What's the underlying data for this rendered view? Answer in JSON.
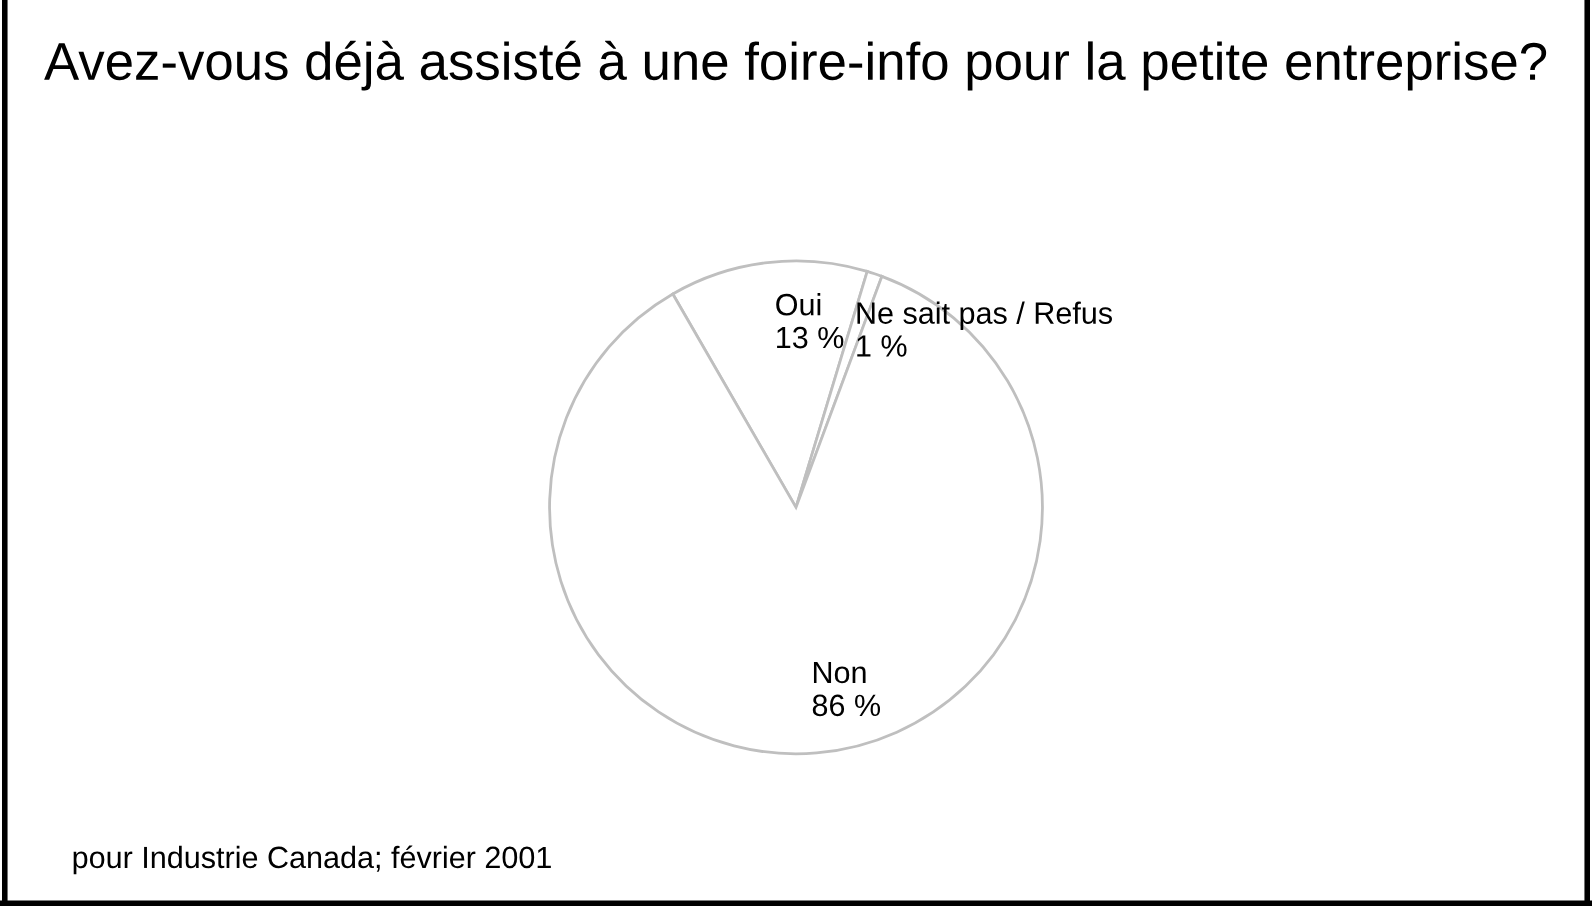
{
  "chart_data": {
    "type": "pie",
    "title": "Avez-vous déjà assisté à une foire-info pour la petite entreprise?",
    "categories": [
      "Oui",
      "Ne sait pas / Refus",
      "Non"
    ],
    "values": [
      13,
      1,
      86
    ],
    "value_labels": [
      "13 %",
      "1 %",
      "86 %"
    ],
    "colors": [
      "#ffffff",
      "#ffffff",
      "#ffffff"
    ],
    "annotations": [
      "pour Industrie Canada; février 2001"
    ]
  }
}
